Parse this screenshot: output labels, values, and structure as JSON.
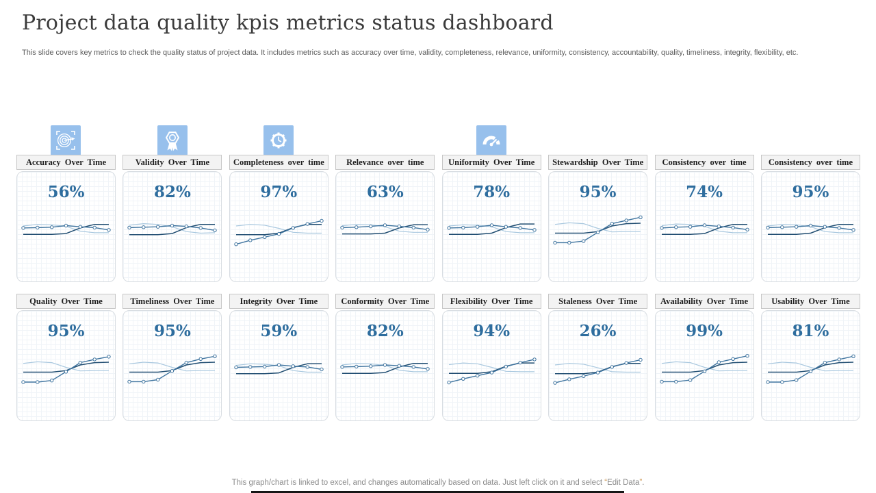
{
  "header": {
    "title": "Project data quality kpis metrics status dashboard",
    "subtitle": "This slide covers key metrics to check the quality status of project data. It includes metrics such as accuracy over time, validity, completeness, relevance, uniformity, consistency, accountability, quality, timeliness, integrity, flexibility, etc."
  },
  "colors": {
    "icon_bg": "#97c0ec",
    "value_text": "#2e6d9e",
    "line_marker": "#3f749f",
    "line_dark": "#214e72",
    "line_light": "#a9c8df",
    "footer_quote": "#c98f45"
  },
  "icons": [
    "target-icon",
    "award-badge-icon",
    "gear-clock-icon",
    "gauge-icon"
  ],
  "footer": {
    "text_before": "This graph/chart is linked to excel,  and changes automatically based on data. Just left click on it and select ",
    "quote_open": "“",
    "quoted": "Edit Data",
    "quote_close": "”",
    "text_after": "."
  },
  "chart_data": [
    {
      "type": "line",
      "title": "Accuracy Over Time",
      "value": "56%",
      "series": [
        {
          "name": "light-line",
          "color_key": "line_light",
          "stroke_width": 1.2,
          "markers": false,
          "values": [
            62,
            66,
            65,
            61,
            49,
            45,
            45
          ]
        },
        {
          "name": "dark-line",
          "color_key": "line_dark",
          "stroke_width": 1.5,
          "markers": false,
          "values": [
            41,
            41,
            41,
            43,
            57,
            66,
            66
          ]
        },
        {
          "name": "marker-line",
          "color_key": "line_marker",
          "stroke_width": 1.4,
          "markers": true,
          "values": [
            57,
            58,
            59,
            63,
            60,
            58,
            52
          ]
        }
      ]
    },
    {
      "type": "line",
      "title": "Validity Over Time",
      "value": "82%",
      "series": [
        {
          "name": "light-line",
          "color_key": "line_light",
          "stroke_width": 1.2,
          "markers": false,
          "values": [
            64,
            68,
            66,
            60,
            48,
            44,
            45
          ]
        },
        {
          "name": "dark-line",
          "color_key": "line_dark",
          "stroke_width": 1.5,
          "markers": false,
          "values": [
            40,
            40,
            40,
            43,
            58,
            66,
            66
          ]
        },
        {
          "name": "marker-line",
          "color_key": "line_marker",
          "stroke_width": 1.4,
          "markers": true,
          "values": [
            58,
            59,
            60,
            63,
            61,
            57,
            51
          ]
        }
      ]
    },
    {
      "type": "line",
      "title": "Completeness over time",
      "value": "97%",
      "series": [
        {
          "name": "light-line",
          "color_key": "line_light",
          "stroke_width": 1.2,
          "markers": false,
          "values": [
            62,
            66,
            64,
            56,
            46,
            44,
            44
          ]
        },
        {
          "name": "dark-line",
          "color_key": "line_dark",
          "stroke_width": 1.5,
          "markers": false,
          "values": [
            40,
            40,
            40,
            44,
            58,
            66,
            66
          ]
        },
        {
          "name": "marker-line",
          "color_key": "line_marker",
          "stroke_width": 1.4,
          "markers": true,
          "values": [
            16,
            26,
            34,
            42,
            57,
            67,
            75
          ]
        }
      ]
    },
    {
      "type": "line",
      "title": "Relevance over time",
      "value": "63%",
      "series": [
        {
          "name": "light-line",
          "color_key": "line_light",
          "stroke_width": 1.2,
          "markers": false,
          "values": [
            63,
            66,
            65,
            60,
            49,
            46,
            46
          ]
        },
        {
          "name": "dark-line",
          "color_key": "line_dark",
          "stroke_width": 1.5,
          "markers": false,
          "values": [
            42,
            42,
            42,
            44,
            57,
            65,
            65
          ]
        },
        {
          "name": "marker-line",
          "color_key": "line_marker",
          "stroke_width": 1.4,
          "markers": true,
          "values": [
            58,
            59,
            61,
            64,
            61,
            58,
            53
          ]
        }
      ]
    },
    {
      "type": "line",
      "title": "Uniformity Over Time",
      "value": "78%",
      "series": [
        {
          "name": "light-line",
          "color_key": "line_light",
          "stroke_width": 1.2,
          "markers": false,
          "values": [
            62,
            65,
            64,
            60,
            48,
            45,
            45
          ]
        },
        {
          "name": "dark-line",
          "color_key": "line_dark",
          "stroke_width": 1.5,
          "markers": false,
          "values": [
            41,
            41,
            41,
            44,
            58,
            67,
            67
          ]
        },
        {
          "name": "marker-line",
          "color_key": "line_marker",
          "stroke_width": 1.4,
          "markers": true,
          "values": [
            57,
            58,
            60,
            64,
            60,
            57,
            52
          ]
        }
      ]
    },
    {
      "type": "line",
      "title": "Stewardship Over Time",
      "value": "95%",
      "series": [
        {
          "name": "light-line",
          "color_key": "line_light",
          "stroke_width": 1.2,
          "markers": false,
          "values": [
            66,
            70,
            68,
            56,
            47,
            48,
            48
          ]
        },
        {
          "name": "dark-line",
          "color_key": "line_dark",
          "stroke_width": 1.5,
          "markers": false,
          "values": [
            44,
            44,
            44,
            48,
            62,
            68,
            69
          ]
        },
        {
          "name": "marker-line",
          "color_key": "line_marker",
          "stroke_width": 1.4,
          "markers": true,
          "values": [
            20,
            20,
            24,
            46,
            68,
            76,
            84
          ]
        }
      ]
    },
    {
      "type": "line",
      "title": "Consistency over time",
      "value": "74%",
      "series": [
        {
          "name": "light-line",
          "color_key": "line_light",
          "stroke_width": 1.2,
          "markers": false,
          "values": [
            63,
            67,
            66,
            61,
            49,
            45,
            45
          ]
        },
        {
          "name": "dark-line",
          "color_key": "line_dark",
          "stroke_width": 1.5,
          "markers": false,
          "values": [
            41,
            41,
            41,
            43,
            57,
            66,
            66
          ]
        },
        {
          "name": "marker-line",
          "color_key": "line_marker",
          "stroke_width": 1.4,
          "markers": true,
          "values": [
            57,
            59,
            60,
            64,
            61,
            58,
            53
          ]
        }
      ]
    },
    {
      "type": "line",
      "title": "Consistency over time",
      "value": "95%",
      "series": [
        {
          "name": "light-line",
          "color_key": "line_light",
          "stroke_width": 1.2,
          "markers": false,
          "values": [
            62,
            66,
            65,
            60,
            48,
            45,
            45
          ]
        },
        {
          "name": "dark-line",
          "color_key": "line_dark",
          "stroke_width": 1.5,
          "markers": false,
          "values": [
            41,
            41,
            41,
            44,
            58,
            66,
            66
          ]
        },
        {
          "name": "marker-line",
          "color_key": "line_marker",
          "stroke_width": 1.4,
          "markers": true,
          "values": [
            58,
            59,
            60,
            63,
            60,
            57,
            52
          ]
        }
      ]
    },
    {
      "type": "line",
      "title": "Quality Over Time",
      "value": "95%",
      "series": [
        {
          "name": "light-line",
          "color_key": "line_light",
          "stroke_width": 1.2,
          "markers": false,
          "values": [
            66,
            70,
            68,
            56,
            47,
            48,
            48
          ]
        },
        {
          "name": "dark-line",
          "color_key": "line_dark",
          "stroke_width": 1.5,
          "markers": false,
          "values": [
            44,
            44,
            44,
            48,
            62,
            68,
            69
          ]
        },
        {
          "name": "marker-line",
          "color_key": "line_marker",
          "stroke_width": 1.4,
          "markers": true,
          "values": [
            19,
            19,
            23,
            45,
            68,
            76,
            83
          ]
        }
      ]
    },
    {
      "type": "line",
      "title": "Timeliness Over Time",
      "value": "95%",
      "series": [
        {
          "name": "light-line",
          "color_key": "line_light",
          "stroke_width": 1.2,
          "markers": false,
          "values": [
            65,
            69,
            67,
            56,
            47,
            48,
            48
          ]
        },
        {
          "name": "dark-line",
          "color_key": "line_dark",
          "stroke_width": 1.5,
          "markers": false,
          "values": [
            44,
            44,
            44,
            48,
            62,
            68,
            69
          ]
        },
        {
          "name": "marker-line",
          "color_key": "line_marker",
          "stroke_width": 1.4,
          "markers": true,
          "values": [
            20,
            20,
            25,
            47,
            68,
            77,
            84
          ]
        }
      ]
    },
    {
      "type": "line",
      "title": "Integrity Over Time",
      "value": "59%",
      "series": [
        {
          "name": "light-line",
          "color_key": "line_light",
          "stroke_width": 1.2,
          "markers": false,
          "values": [
            61,
            65,
            64,
            60,
            48,
            44,
            44
          ]
        },
        {
          "name": "dark-line",
          "color_key": "line_dark",
          "stroke_width": 1.5,
          "markers": false,
          "values": [
            40,
            40,
            40,
            42,
            56,
            65,
            65
          ]
        },
        {
          "name": "marker-line",
          "color_key": "line_marker",
          "stroke_width": 1.4,
          "markers": true,
          "values": [
            56,
            57,
            58,
            62,
            59,
            57,
            51
          ]
        }
      ]
    },
    {
      "type": "line",
      "title": "Conformity Over Time",
      "value": "82%",
      "series": [
        {
          "name": "light-line",
          "color_key": "line_light",
          "stroke_width": 1.2,
          "markers": false,
          "values": [
            62,
            66,
            65,
            61,
            49,
            45,
            45
          ]
        },
        {
          "name": "dark-line",
          "color_key": "line_dark",
          "stroke_width": 1.5,
          "markers": false,
          "values": [
            41,
            41,
            41,
            43,
            57,
            66,
            66
          ]
        },
        {
          "name": "marker-line",
          "color_key": "line_marker",
          "stroke_width": 1.4,
          "markers": true,
          "values": [
            57,
            58,
            59,
            62,
            60,
            57,
            52
          ]
        }
      ]
    },
    {
      "type": "line",
      "title": "Flexibility Over Time",
      "value": "94%",
      "series": [
        {
          "name": "light-line",
          "color_key": "line_light",
          "stroke_width": 1.2,
          "markers": false,
          "values": [
            63,
            67,
            65,
            56,
            46,
            45,
            45
          ]
        },
        {
          "name": "dark-line",
          "color_key": "line_dark",
          "stroke_width": 1.5,
          "markers": false,
          "values": [
            41,
            41,
            41,
            45,
            59,
            67,
            67
          ]
        },
        {
          "name": "marker-line",
          "color_key": "line_marker",
          "stroke_width": 1.4,
          "markers": true,
          "values": [
            18,
            27,
            35,
            43,
            58,
            68,
            76
          ]
        }
      ]
    },
    {
      "type": "line",
      "title": "Staleness Over Time",
      "value": "26%",
      "series": [
        {
          "name": "light-line",
          "color_key": "line_light",
          "stroke_width": 1.2,
          "markers": false,
          "values": [
            62,
            66,
            64,
            55,
            45,
            44,
            44
          ]
        },
        {
          "name": "dark-line",
          "color_key": "line_dark",
          "stroke_width": 1.5,
          "markers": false,
          "values": [
            40,
            40,
            40,
            44,
            58,
            66,
            66
          ]
        },
        {
          "name": "marker-line",
          "color_key": "line_marker",
          "stroke_width": 1.4,
          "markers": true,
          "values": [
            17,
            26,
            34,
            43,
            57,
            67,
            75
          ]
        }
      ]
    },
    {
      "type": "line",
      "title": "Availability Over Time",
      "value": "99%",
      "series": [
        {
          "name": "light-line",
          "color_key": "line_light",
          "stroke_width": 1.2,
          "markers": false,
          "values": [
            66,
            70,
            68,
            56,
            47,
            48,
            48
          ]
        },
        {
          "name": "dark-line",
          "color_key": "line_dark",
          "stroke_width": 1.5,
          "markers": false,
          "values": [
            44,
            44,
            44,
            48,
            62,
            68,
            69
          ]
        },
        {
          "name": "marker-line",
          "color_key": "line_marker",
          "stroke_width": 1.4,
          "markers": true,
          "values": [
            20,
            20,
            24,
            46,
            69,
            77,
            85
          ]
        }
      ]
    },
    {
      "type": "line",
      "title": "Usability Over Time",
      "value": "81%",
      "series": [
        {
          "name": "light-line",
          "color_key": "line_light",
          "stroke_width": 1.2,
          "markers": false,
          "values": [
            65,
            69,
            67,
            56,
            47,
            48,
            48
          ]
        },
        {
          "name": "dark-line",
          "color_key": "line_dark",
          "stroke_width": 1.5,
          "markers": false,
          "values": [
            44,
            44,
            44,
            48,
            62,
            68,
            69
          ]
        },
        {
          "name": "marker-line",
          "color_key": "line_marker",
          "stroke_width": 1.4,
          "markers": true,
          "values": [
            19,
            19,
            24,
            46,
            68,
            76,
            84
          ]
        }
      ]
    }
  ]
}
